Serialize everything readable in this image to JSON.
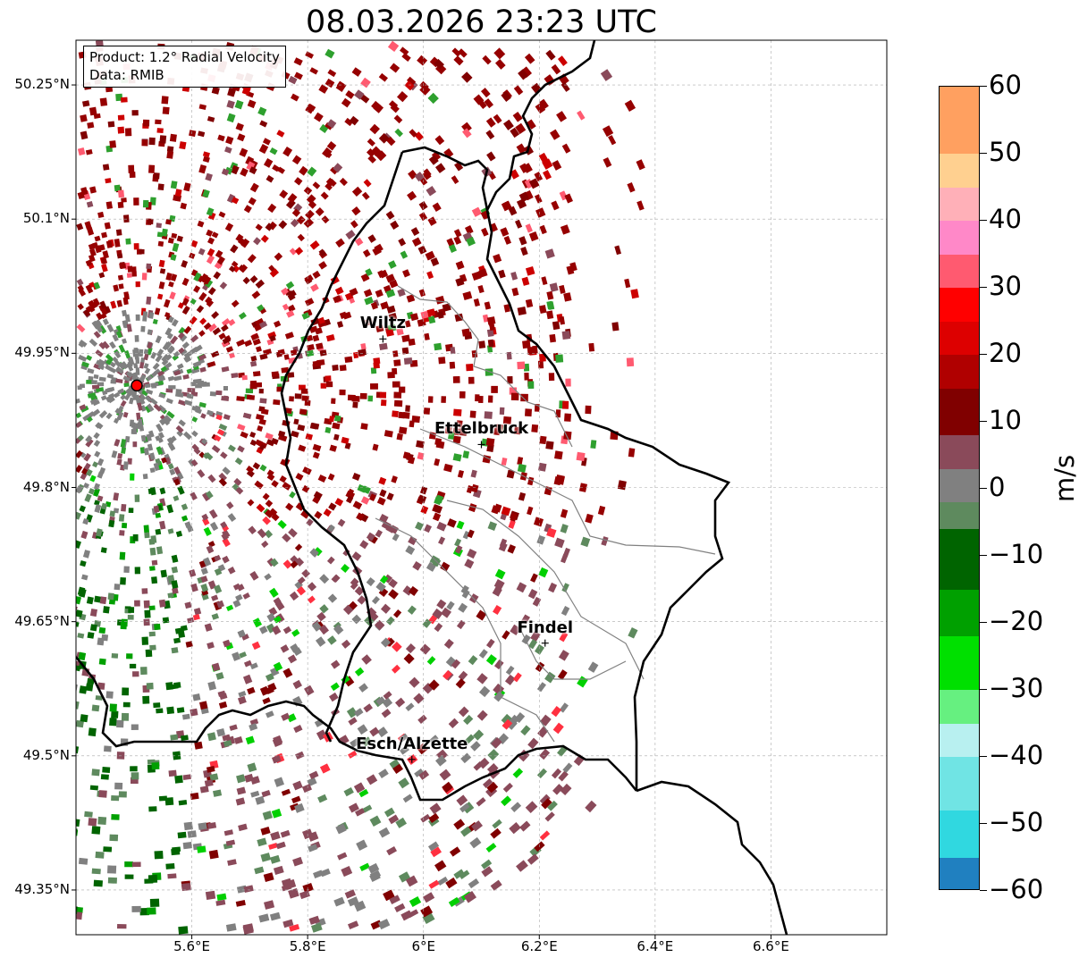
{
  "title": "08.03.2026 23:23 UTC",
  "info": {
    "product": "Product: 1.2° Radial Velocity",
    "data": "Data: RMIB"
  },
  "cities": [
    {
      "name": "Wiltz",
      "lon": 5.93,
      "lat": 49.966
    },
    {
      "name": "Ettelbruck",
      "lon": 6.1,
      "lat": 49.848
    },
    {
      "name": "Findel",
      "lon": 6.21,
      "lat": 49.626
    },
    {
      "name": "Esch/Alzette",
      "lon": 5.98,
      "lat": 49.496
    }
  ],
  "radar_site": {
    "lon": 5.505,
    "lat": 49.914
  },
  "lat_ticks": [
    {
      "value": 50.25,
      "label": "50.25°N"
    },
    {
      "value": 50.1,
      "label": "50.1°N"
    },
    {
      "value": 49.95,
      "label": "49.95°N"
    },
    {
      "value": 49.8,
      "label": "49.8°N"
    },
    {
      "value": 49.65,
      "label": "49.65°N"
    },
    {
      "value": 49.5,
      "label": "49.5°N"
    },
    {
      "value": 49.35,
      "label": "49.35°N"
    }
  ],
  "lon_ticks": [
    {
      "value": 5.6,
      "label": "5.6°E"
    },
    {
      "value": 5.8,
      "label": "5.8°E"
    },
    {
      "value": 6.0,
      "label": "6°E"
    },
    {
      "value": 6.2,
      "label": "6.2°E"
    },
    {
      "value": 6.4,
      "label": "6.4°E"
    },
    {
      "value": 6.6,
      "label": "6.6°E"
    }
  ],
  "extent": {
    "lon_min": 5.4,
    "lon_max": 6.8,
    "lat_min": 49.3,
    "lat_max": 50.3
  },
  "colorbar": {
    "unit": "m/s",
    "min": -60,
    "max": 60,
    "ticks": [
      {
        "value": 60,
        "label": "60"
      },
      {
        "value": 50,
        "label": "50"
      },
      {
        "value": 40,
        "label": "40"
      },
      {
        "value": 30,
        "label": "30"
      },
      {
        "value": 20,
        "label": "20"
      },
      {
        "value": 10,
        "label": "10"
      },
      {
        "value": 0,
        "label": "0"
      },
      {
        "value": -10,
        "label": "−10"
      },
      {
        "value": -20,
        "label": "−20"
      },
      {
        "value": -30,
        "label": "−30"
      },
      {
        "value": -40,
        "label": "−40"
      },
      {
        "value": -50,
        "label": "−50"
      },
      {
        "value": -60,
        "label": "−60"
      }
    ],
    "segments": [
      {
        "from": 50,
        "to": 60,
        "color": "#ffa060"
      },
      {
        "from": 45,
        "to": 50,
        "color": "#ffd090"
      },
      {
        "from": 40,
        "to": 45,
        "color": "#ffb0b8"
      },
      {
        "from": 35,
        "to": 40,
        "color": "#ff88c8"
      },
      {
        "from": 30,
        "to": 35,
        "color": "#ff5a70"
      },
      {
        "from": 25,
        "to": 30,
        "color": "#ff0000"
      },
      {
        "from": 20,
        "to": 25,
        "color": "#dd0000"
      },
      {
        "from": 15,
        "to": 20,
        "color": "#b00000"
      },
      {
        "from": 8,
        "to": 15,
        "color": "#800000"
      },
      {
        "from": 3,
        "to": 8,
        "color": "#8a4a5a"
      },
      {
        "from": -2,
        "to": 3,
        "color": "#808080"
      },
      {
        "from": -6,
        "to": -2,
        "color": "#5e8a5e"
      },
      {
        "from": -15,
        "to": -6,
        "color": "#006400"
      },
      {
        "from": -22,
        "to": -15,
        "color": "#00a000"
      },
      {
        "from": -30,
        "to": -22,
        "color": "#00e000"
      },
      {
        "from": -35,
        "to": -30,
        "color": "#66f080"
      },
      {
        "from": -40,
        "to": -35,
        "color": "#b8f0f0"
      },
      {
        "from": -48,
        "to": -40,
        "color": "#70e4e4"
      },
      {
        "from": -55,
        "to": -48,
        "color": "#30d8e0"
      },
      {
        "from": -60,
        "to": -55,
        "color": "#2080c0"
      }
    ]
  }
}
